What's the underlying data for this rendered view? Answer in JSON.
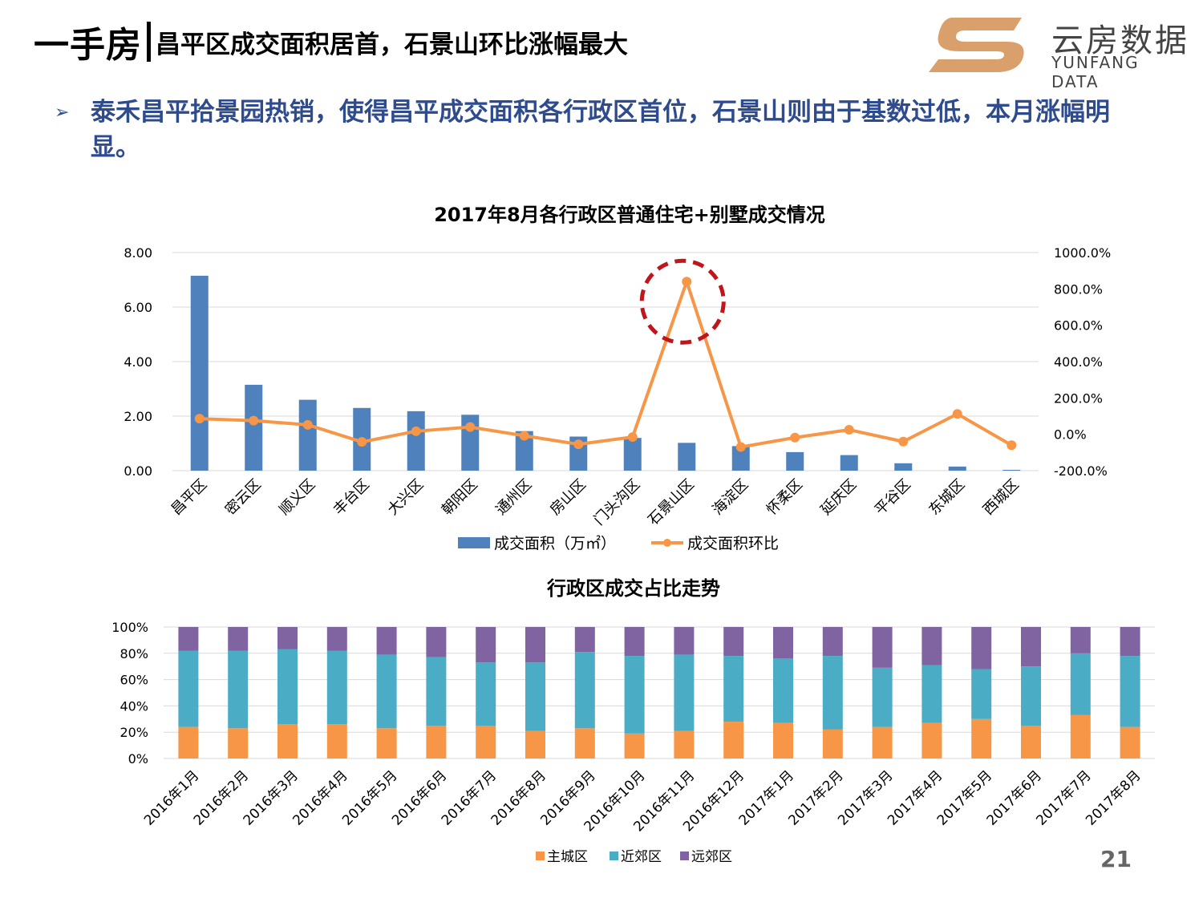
{
  "header": {
    "title_main": "一手房",
    "title_sub": "昌平区成交面积居首，石景山环比涨幅最大",
    "logo_cn": "云房数据",
    "logo_en": "YUNFANG DATA"
  },
  "bullet": {
    "mark": "➢",
    "text": "泰禾昌平拾景园热销，使得昌平成交面积各行政区首位，石景山则由于基数过低，本月涨幅明显。"
  },
  "page_number": "21",
  "colors": {
    "bar_blue": "#4F81BD",
    "line_orange": "#F79646",
    "highlight_red": "#C0151B",
    "main_city": "#F79646",
    "near_suburb": "#4BACC6",
    "far_suburb": "#8064A2",
    "logo_tan": "#D9A06B"
  },
  "chart_data": [
    {
      "type": "bar",
      "title": "2017年8月各行政区普通住宅+别墅成交情况",
      "categories": [
        "昌平区",
        "密云区",
        "顺义区",
        "丰台区",
        "大兴区",
        "朝阳区",
        "通州区",
        "房山区",
        "门头沟区",
        "石景山区",
        "海淀区",
        "怀柔区",
        "延庆区",
        "平谷区",
        "东城区",
        "西城区"
      ],
      "series": [
        {
          "name": "成交面积（万㎡）",
          "type": "bar",
          "axis": "left",
          "values": [
            7.15,
            3.15,
            2.6,
            2.3,
            2.18,
            2.05,
            1.45,
            1.25,
            1.2,
            1.02,
            0.9,
            0.68,
            0.57,
            0.27,
            0.15,
            0.03
          ]
        },
        {
          "name": "成交面积环比",
          "type": "line",
          "axis": "right",
          "values": [
            86,
            75,
            52,
            -42,
            17,
            40,
            -8,
            -55,
            -15,
            840,
            -70,
            -18,
            25,
            -40,
            112,
            -60
          ]
        }
      ],
      "y_left": {
        "ticks": [
          "8.00",
          "6.00",
          "4.00",
          "2.00",
          "0.00"
        ],
        "range": [
          0,
          8
        ]
      },
      "y_right": {
        "ticks": [
          "1000.0%",
          "800.0%",
          "600.0%",
          "400.0%",
          "200.0%",
          "0.0%",
          "-200.0%"
        ],
        "range": [
          -200,
          1000
        ]
      },
      "legend": "bottom",
      "highlight": "石景山区"
    },
    {
      "type": "bar",
      "stacked": true,
      "title": "行政区成交占比走势",
      "categories": [
        "2016年1月",
        "2016年2月",
        "2016年3月",
        "2016年4月",
        "2016年5月",
        "2016年6月",
        "2016年7月",
        "2016年8月",
        "2016年9月",
        "2016年10月",
        "2016年11月",
        "2016年12月",
        "2017年1月",
        "2017年2月",
        "2017年3月",
        "2017年4月",
        "2017年5月",
        "2017年6月",
        "2017年7月",
        "2017年8月"
      ],
      "series": [
        {
          "name": "主城区",
          "values": [
            24,
            23,
            26,
            26,
            23,
            25,
            25,
            21,
            23,
            19,
            21,
            28,
            27,
            22,
            24,
            27,
            30,
            25,
            33,
            24
          ]
        },
        {
          "name": "近郊区",
          "values": [
            58,
            59,
            57,
            56,
            56,
            52,
            48,
            52,
            58,
            59,
            58,
            50,
            49,
            56,
            45,
            44,
            38,
            45,
            47,
            54
          ]
        },
        {
          "name": "远郊区",
          "values": [
            18,
            18,
            17,
            18,
            21,
            23,
            27,
            27,
            19,
            22,
            21,
            22,
            24,
            22,
            31,
            29,
            32,
            30,
            20,
            22
          ]
        }
      ],
      "y_ticks": [
        "100%",
        "80%",
        "60%",
        "40%",
        "20%",
        "0%"
      ],
      "ylim": [
        0,
        100
      ],
      "legend": "bottom"
    }
  ]
}
